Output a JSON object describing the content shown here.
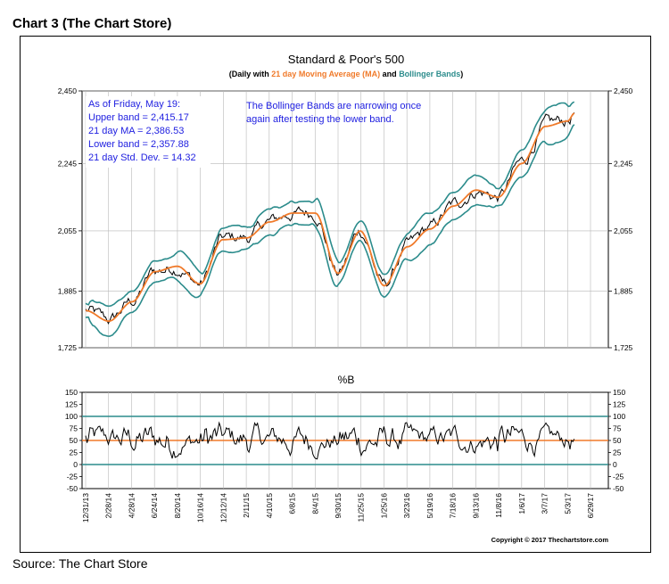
{
  "page": {
    "heading": "Chart 3 (The Chart Store)",
    "source": "Source: The Chart Store"
  },
  "chart_data": [
    {
      "type": "line",
      "title": "Standard & Poor's 500",
      "subtitle_parts": [
        "(Daily with ",
        "21 day Moving Average (MA)",
        " and ",
        "Bollinger Bands",
        ")"
      ],
      "colors": {
        "price": "#000000",
        "ma": "#f07a2a",
        "bands": "#2c8c8c",
        "info_text": "#1e1ee0"
      },
      "ylim": [
        1725,
        2450
      ],
      "y_ticks": [
        "2,450",
        "2,245",
        "2,055",
        "1,885",
        "1,725"
      ],
      "y_tick_values": [
        2450,
        2245,
        2055,
        1885,
        1725
      ],
      "info_box": [
        "As of Friday, May 19:",
        "Upper band = 2,415.17",
        "21 day MA = 2,386.53",
        "Lower band = 2,357.88",
        "21 day Std. Dev. = 14.32"
      ],
      "annotation": [
        "The Bollinger Bands are narrowing once",
        "again after testing the lower band."
      ],
      "series": [
        {
          "name": "21 day Moving Average (MA)",
          "x": [
            "2013-12-31",
            "2014-02-28",
            "2014-04-28",
            "2014-06-24",
            "2014-08-20",
            "2014-10-16",
            "2014-12-12",
            "2015-02-11",
            "2015-04-10",
            "2015-06-08",
            "2015-08-04",
            "2015-09-30",
            "2015-11-25",
            "2016-01-25",
            "2016-03-23",
            "2016-05-19",
            "2016-07-18",
            "2016-09-13",
            "2016-11-08",
            "2017-01-06",
            "2017-03-07",
            "2017-05-03",
            "2017-05-19"
          ],
          "values": [
            1830,
            1800,
            1855,
            1940,
            1955,
            1905,
            2030,
            2035,
            2080,
            2105,
            2105,
            1935,
            2055,
            1900,
            2010,
            2060,
            2125,
            2170,
            2150,
            2245,
            2350,
            2365,
            2387
          ]
        }
      ]
    },
    {
      "type": "line",
      "title": "%B",
      "ylim": [
        -50,
        150
      ],
      "y_ticks": [
        "150",
        "125",
        "100",
        "75",
        "50",
        "25",
        "0",
        "-25",
        "-50"
      ],
      "y_tick_values": [
        150,
        125,
        100,
        75,
        50,
        25,
        0,
        -25,
        -50
      ],
      "reference_lines": [
        100,
        50,
        0
      ],
      "x_ticks": [
        "12/31/13",
        "2/28/14",
        "4/28/14",
        "6/24/14",
        "8/20/14",
        "10/16/14",
        "12/12/14",
        "2/11/15",
        "4/10/15",
        "6/8/15",
        "8/4/15",
        "9/30/15",
        "11/25/15",
        "1/25/16",
        "3/23/16",
        "5/19/16",
        "7/18/16",
        "9/13/16",
        "11/8/16",
        "1/6/17",
        "3/7/17",
        "5/3/17",
        "6/29/17"
      ],
      "copyright": "Copyright © 2017 Thechartstore.com"
    }
  ]
}
